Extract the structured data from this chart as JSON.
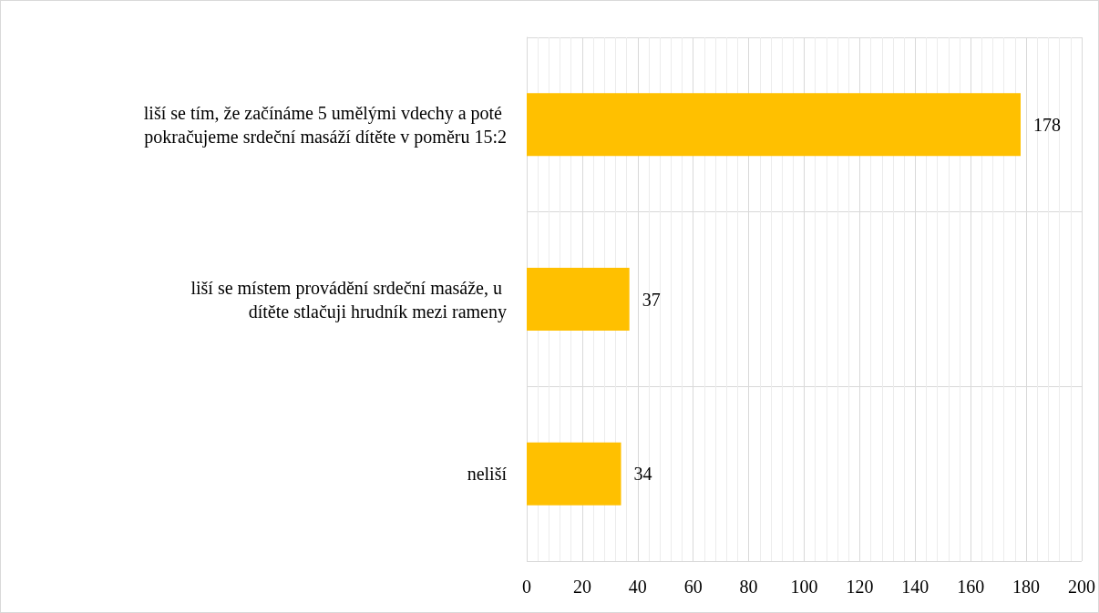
{
  "chart_data": {
    "type": "bar",
    "orientation": "horizontal",
    "categories": [
      "liší se tím, že začínáme 5 umělými vdechy a poté pokračujeme srdeční masáží dítěte v poměru 15:2",
      "liší se místem provádění srdeční masáže, u dítěte stlačuji hrudník mezi rameny",
      "neliší"
    ],
    "values": [
      178,
      37,
      34
    ],
    "color": "#ffc000",
    "data_labels": true,
    "xlim": [
      0,
      200
    ],
    "xticks": [
      0,
      20,
      40,
      60,
      80,
      100,
      120,
      140,
      160,
      180,
      200
    ],
    "grid": true
  }
}
